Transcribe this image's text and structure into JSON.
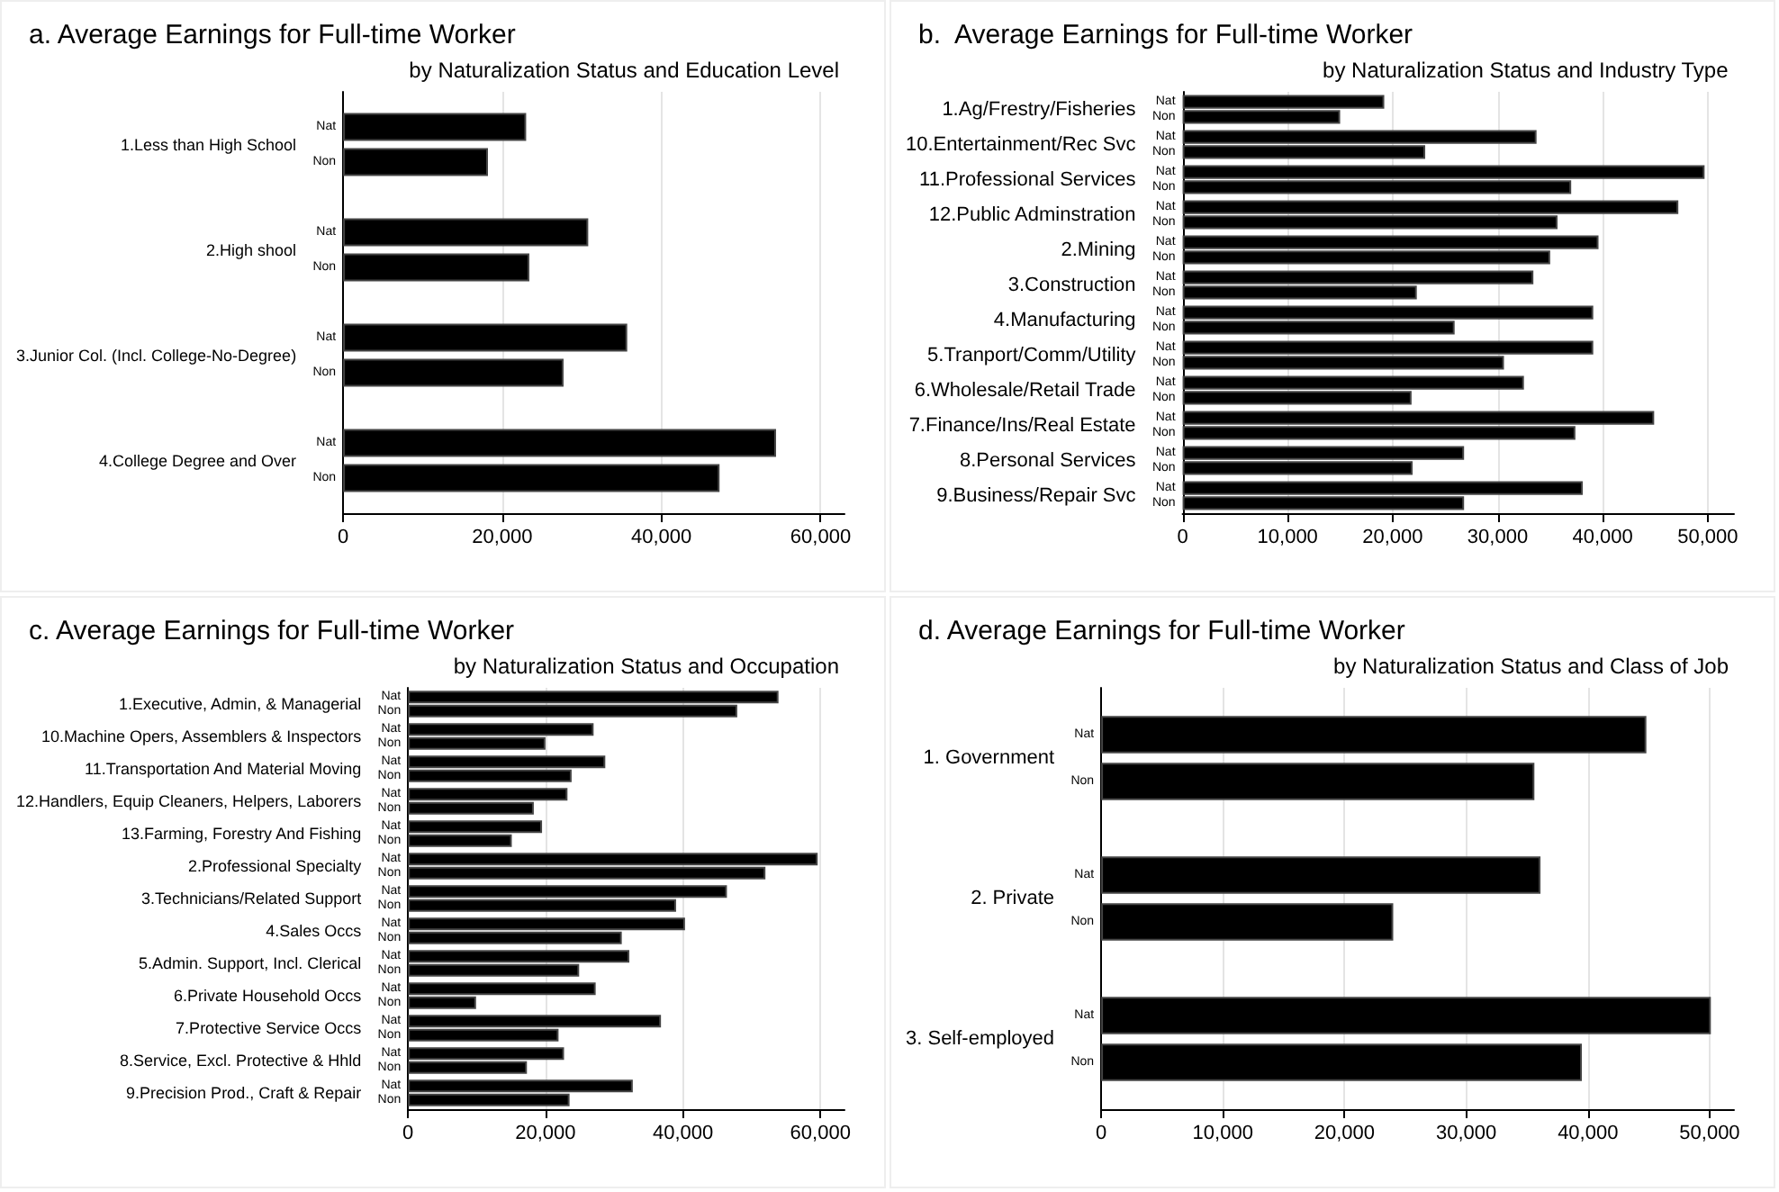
{
  "chart_data": [
    {
      "type": "bar",
      "orientation": "horizontal",
      "title": "a. Average Earnings for Full-time Worker",
      "subtitle": "by Naturalization Status and Education Level",
      "categories": [
        "1.Less than High School",
        "2.High shool",
        "3.Junior Col. (Incl. College-No-Degree)",
        "4.College Degree and Over"
      ],
      "series": [
        {
          "name": "Nat",
          "color": "#000000",
          "values": [
            23000,
            30800,
            35700,
            54400
          ]
        },
        {
          "name": "Non",
          "color": "#000000",
          "values": [
            18200,
            23400,
            27700,
            47300
          ]
        }
      ],
      "xlim": [
        0,
        63000
      ],
      "xticks": [
        {
          "value": 0,
          "label": "0"
        },
        {
          "value": 20000,
          "label": "20,000"
        },
        {
          "value": 40000,
          "label": "40,000"
        },
        {
          "value": 60000,
          "label": "60,000"
        }
      ],
      "grid": "x"
    },
    {
      "type": "bar",
      "orientation": "horizontal",
      "title": "b.  Average Earnings for Full-time Worker",
      "subtitle": "by Naturalization Status and Industry Type",
      "categories": [
        "1.Ag/Frestry/Fisheries",
        "10.Entertainment/Rec Svc",
        "11.Professional Services",
        "12.Public Adminstration",
        "2.Mining",
        "3.Construction",
        "4.Manufacturing",
        "5.Tranport/Comm/Utility",
        "6.Wholesale/Retail Trade",
        "7.Finance/Ins/Real Estate",
        "8.Personal Services",
        "9.Business/Repair Svc"
      ],
      "series": [
        {
          "name": "Nat",
          "color": "#000000",
          "values": [
            19200,
            33700,
            49700,
            47200,
            39600,
            33400,
            39100,
            39100,
            32500,
            44900,
            26800,
            38100
          ]
        },
        {
          "name": "Non",
          "color": "#000000",
          "values": [
            15000,
            23100,
            37000,
            35700,
            35000,
            22300,
            25900,
            30600,
            21800,
            37400,
            21900,
            26800
          ]
        }
      ],
      "xlim": [
        0,
        52500
      ],
      "xticks": [
        {
          "value": 0,
          "label": "0"
        },
        {
          "value": 10000,
          "label": "10,000"
        },
        {
          "value": 20000,
          "label": "20,000"
        },
        {
          "value": 30000,
          "label": "30,000"
        },
        {
          "value": 40000,
          "label": "40,000"
        },
        {
          "value": 50000,
          "label": "50,000"
        }
      ],
      "grid": "x"
    },
    {
      "type": "bar",
      "orientation": "horizontal",
      "title": "c. Average Earnings for Full-time Worker",
      "subtitle": "by Naturalization Status and Occupation",
      "categories": [
        "1.Executive, Admin, & Managerial",
        "10.Machine Opers, Assemblers & Inspectors",
        "11.Transportation And Material Moving",
        "12.Handlers, Equip Cleaners, Helpers, Laborers",
        "13.Farming, Forestry And Fishing",
        "2.Professional Specialty",
        "3.Technicians/Related Support",
        "4.Sales Occs",
        "5.Admin. Support, Incl. Clerical",
        "6.Private Household Occs",
        "7.Protective Service Occs",
        "8.Service, Excl. Protective & Hhld",
        "9.Precision Prod., Craft & Repair"
      ],
      "series": [
        {
          "name": "Nat",
          "color": "#000000",
          "values": [
            53900,
            27000,
            28700,
            23200,
            19500,
            59600,
            46400,
            40300,
            32200,
            27300,
            36800,
            22700,
            32700
          ]
        },
        {
          "name": "Non",
          "color": "#000000",
          "values": [
            47900,
            20000,
            23800,
            18300,
            15100,
            52000,
            39000,
            31100,
            24900,
            9900,
            21900,
            17300,
            23500
          ]
        }
      ],
      "xlim": [
        0,
        63500
      ],
      "xticks": [
        {
          "value": 0,
          "label": "0"
        },
        {
          "value": 20000,
          "label": "20,000"
        },
        {
          "value": 40000,
          "label": "40,000"
        },
        {
          "value": 60000,
          "label": "60,000"
        }
      ],
      "grid": "x"
    },
    {
      "type": "bar",
      "orientation": "horizontal",
      "title": "d. Average Earnings for Full-time Worker",
      "subtitle": "by Naturalization Status and Class of Job",
      "categories": [
        "1. Government",
        "2. Private",
        "3. Self-employed"
      ],
      "series": [
        {
          "name": "Nat",
          "color": "#000000",
          "values": [
            44800,
            36100,
            50100
          ]
        },
        {
          "name": "Non",
          "color": "#000000",
          "values": [
            35600,
            24000,
            39500
          ]
        }
      ],
      "xlim": [
        0,
        52000
      ],
      "xticks": [
        {
          "value": 0,
          "label": "0"
        },
        {
          "value": 10000,
          "label": "10,000"
        },
        {
          "value": 20000,
          "label": "20,000"
        },
        {
          "value": 30000,
          "label": "30,000"
        },
        {
          "value": 40000,
          "label": "40,000"
        },
        {
          "value": 50000,
          "label": "50,000"
        }
      ],
      "grid": "x"
    }
  ]
}
